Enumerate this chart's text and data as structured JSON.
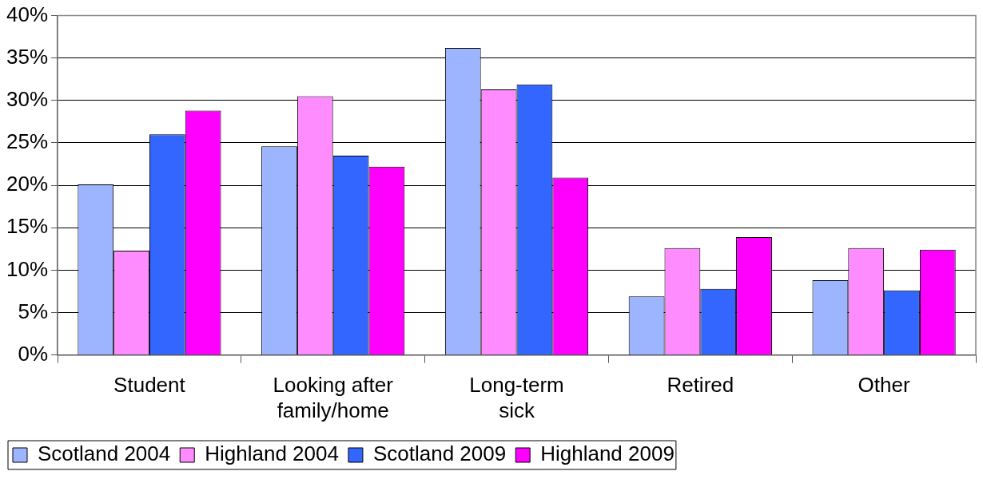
{
  "chart_data": {
    "type": "bar",
    "categories": [
      "Student",
      "Looking after family/home",
      "Long-term sick",
      "Retired",
      "Other"
    ],
    "series": [
      {
        "name": "Scotland 2004",
        "color": "#9db5ff",
        "values": [
          20.1,
          24.6,
          36.2,
          6.9,
          8.8
        ]
      },
      {
        "name": "Highland 2004",
        "color": "#ff8cff",
        "values": [
          12.3,
          30.5,
          31.3,
          12.6,
          12.6
        ]
      },
      {
        "name": "Scotland 2009",
        "color": "#3366ff",
        "values": [
          26.0,
          23.5,
          31.9,
          7.8,
          7.6
        ]
      },
      {
        "name": "Highland 2009",
        "color": "#ff00ff",
        "values": [
          28.8,
          22.2,
          20.9,
          13.9,
          12.4
        ]
      }
    ],
    "ylim": [
      0,
      40
    ],
    "yticks": [
      {
        "value": 0,
        "label": "0%"
      },
      {
        "value": 5,
        "label": "5%"
      },
      {
        "value": 10,
        "label": "10%"
      },
      {
        "value": 15,
        "label": "15%"
      },
      {
        "value": 20,
        "label": "20%"
      },
      {
        "value": 25,
        "label": "25%"
      },
      {
        "value": 30,
        "label": "30%"
      },
      {
        "value": 35,
        "label": "35%"
      },
      {
        "value": 40,
        "label": "40%"
      }
    ],
    "grid": "y",
    "legend": "bottom"
  }
}
